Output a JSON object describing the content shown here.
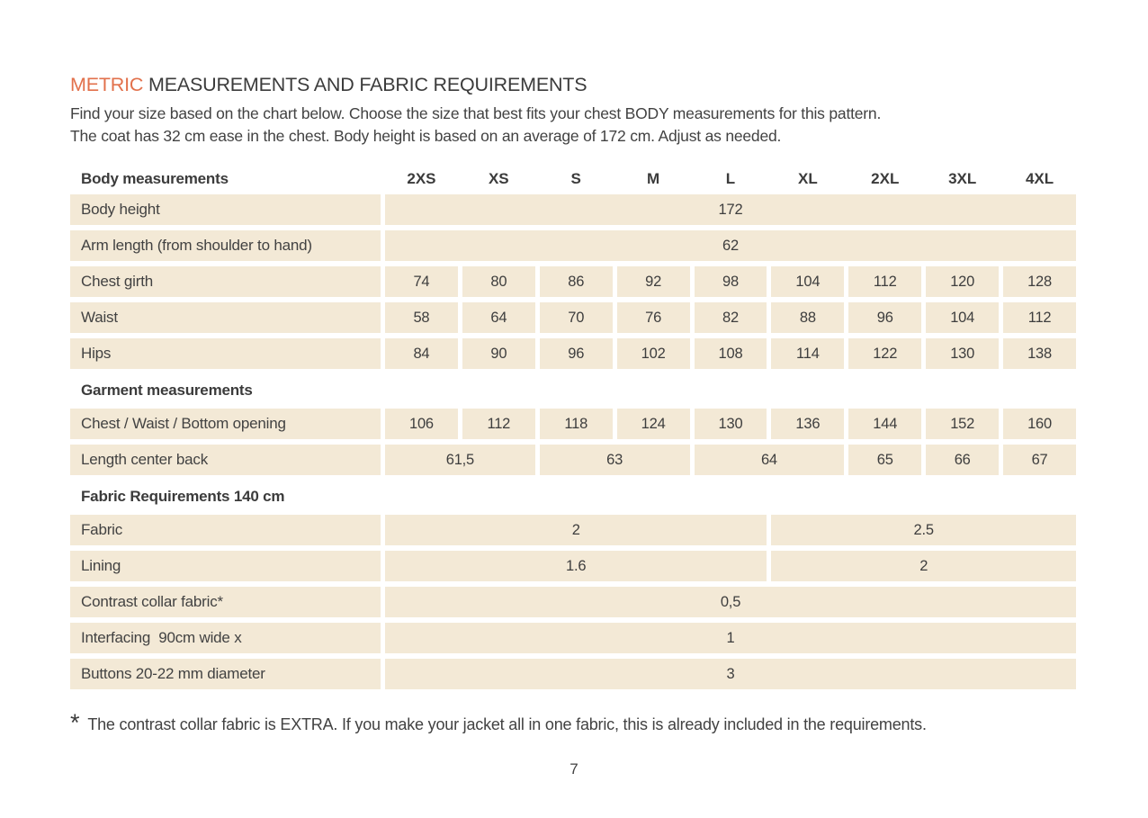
{
  "page": {
    "title": {
      "highlight": "METRIC",
      "rest": "MEASUREMENTS AND FABRIC REQUIREMENTS"
    },
    "intro_line1": "Find your size based on the chart below. Choose the size that best fits your chest BODY measurements for this pattern.",
    "intro_line2": "The coat has 32 cm ease in the chest. Body height is based on an average of 172 cm. Adjust as needed.",
    "footnote": {
      "marker": "*",
      "text": "The contrast collar fabric is EXTRA. If you make your jacket all in one fabric, this is already included in the requirements."
    },
    "page_number": "7"
  },
  "colors": {
    "accent_orange": "#E2714C",
    "cell_beige": "#F3E9D6",
    "text_dark": "#3B3B3B"
  },
  "table": {
    "header": {
      "label": "Body measurements",
      "sizes": [
        "2XS",
        "XS",
        "S",
        "M",
        "L",
        "XL",
        "2XL",
        "3XL",
        "4XL"
      ]
    },
    "sections": [
      {
        "heading": null,
        "rows": [
          {
            "label": "Body height",
            "cells": [
              {
                "span": 9,
                "value": "172"
              }
            ]
          },
          {
            "label": "Arm length (from shoulder to hand)",
            "cells": [
              {
                "span": 9,
                "value": "62"
              }
            ]
          },
          {
            "label": "Chest girth",
            "cells": [
              {
                "span": 1,
                "value": "74"
              },
              {
                "span": 1,
                "value": "80"
              },
              {
                "span": 1,
                "value": "86"
              },
              {
                "span": 1,
                "value": "92"
              },
              {
                "span": 1,
                "value": "98"
              },
              {
                "span": 1,
                "value": "104"
              },
              {
                "span": 1,
                "value": "112"
              },
              {
                "span": 1,
                "value": "120"
              },
              {
                "span": 1,
                "value": "128"
              }
            ]
          },
          {
            "label": "Waist",
            "cells": [
              {
                "span": 1,
                "value": "58"
              },
              {
                "span": 1,
                "value": "64"
              },
              {
                "span": 1,
                "value": "70"
              },
              {
                "span": 1,
                "value": "76"
              },
              {
                "span": 1,
                "value": "82"
              },
              {
                "span": 1,
                "value": "88"
              },
              {
                "span": 1,
                "value": "96"
              },
              {
                "span": 1,
                "value": "104"
              },
              {
                "span": 1,
                "value": "112"
              }
            ]
          },
          {
            "label": "Hips",
            "cells": [
              {
                "span": 1,
                "value": "84"
              },
              {
                "span": 1,
                "value": "90"
              },
              {
                "span": 1,
                "value": "96"
              },
              {
                "span": 1,
                "value": "102"
              },
              {
                "span": 1,
                "value": "108"
              },
              {
                "span": 1,
                "value": "114"
              },
              {
                "span": 1,
                "value": "122"
              },
              {
                "span": 1,
                "value": "130"
              },
              {
                "span": 1,
                "value": "138"
              }
            ]
          }
        ]
      },
      {
        "heading": "Garment measurements",
        "rows": [
          {
            "label": "Chest / Waist / Bottom opening",
            "cells": [
              {
                "span": 1,
                "value": "106"
              },
              {
                "span": 1,
                "value": "112"
              },
              {
                "span": 1,
                "value": "118"
              },
              {
                "span": 1,
                "value": "124"
              },
              {
                "span": 1,
                "value": "130"
              },
              {
                "span": 1,
                "value": "136"
              },
              {
                "span": 1,
                "value": "144"
              },
              {
                "span": 1,
                "value": "152"
              },
              {
                "span": 1,
                "value": "160"
              }
            ]
          },
          {
            "label": "Length center back",
            "cells": [
              {
                "span": 2,
                "value": "61,5"
              },
              {
                "span": 2,
                "value": "63"
              },
              {
                "span": 2,
                "value": "64"
              },
              {
                "span": 1,
                "value": "65"
              },
              {
                "span": 1,
                "value": "66"
              },
              {
                "span": 1,
                "value": "67"
              }
            ]
          }
        ]
      },
      {
        "heading": "Fabric Requirements 140 cm",
        "rows": [
          {
            "label": "Fabric",
            "cells": [
              {
                "span": 5,
                "value": "2"
              },
              {
                "span": 4,
                "value": "2.5"
              }
            ]
          },
          {
            "label": "Lining",
            "cells": [
              {
                "span": 5,
                "value": "1.6"
              },
              {
                "span": 4,
                "value": "2"
              }
            ]
          },
          {
            "label": "Contrast collar fabric*",
            "cells": [
              {
                "span": 9,
                "value": "0,5"
              }
            ]
          },
          {
            "label": "Interfacing  90cm wide x",
            "cells": [
              {
                "span": 9,
                "value": "1"
              }
            ]
          },
          {
            "label": "Buttons 20-22 mm diameter",
            "cells": [
              {
                "span": 9,
                "value": "3"
              }
            ]
          }
        ]
      }
    ]
  }
}
